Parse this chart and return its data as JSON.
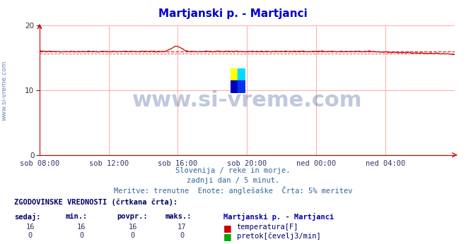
{
  "title": "Martjanski p. - Martjanci",
  "title_color": "#0000cc",
  "bg_color": "#ffffff",
  "plot_bg_color": "#ffffff",
  "grid_color": "#ffaaaa",
  "x_labels": [
    "sob 08:00",
    "sob 12:00",
    "sob 16:00",
    "sob 20:00",
    "ned 00:00",
    "ned 04:00"
  ],
  "x_ticks_norm": [
    0.0,
    0.1667,
    0.3333,
    0.5,
    0.6667,
    0.8333
  ],
  "y_min": 0,
  "y_max": 20,
  "y_tick_interval": 10,
  "temp_avg": 16,
  "temp_min": 16,
  "temp_max": 17,
  "temp_current": 16,
  "flow_avg": 0,
  "flow_min": 0,
  "flow_max": 0,
  "flow_current": 0,
  "temp_line_color": "#cc0000",
  "flow_line_color": "#00aa00",
  "hline_avg_color": "#cc0000",
  "hline_min_color": "#cc0000",
  "subtitle1": "Slovenija / reke in morje.",
  "subtitle2": "zadnji dan / 5 minut.",
  "subtitle3": "Meritve: trenutne  Enote: anglešaške  Črta: 5% meritev",
  "legend_title": "ZGODOVINSKE VREDNOSTI (črtkana črta):",
  "col_sedaj": "sedaj:",
  "col_min": "min.:",
  "col_povpr": "povpr.:",
  "col_maks": "maks.:",
  "station_name": "Martjanski p. - Martjanci",
  "row1_label": "temperatura[F]",
  "row2_label": "pretok[čevelj3/min]",
  "watermark": "www.si-vreme.com",
  "watermark_color": "#1a3a8a",
  "ylabel_left": "www.si-vreme.com",
  "ylabel_color": "#6688bb"
}
